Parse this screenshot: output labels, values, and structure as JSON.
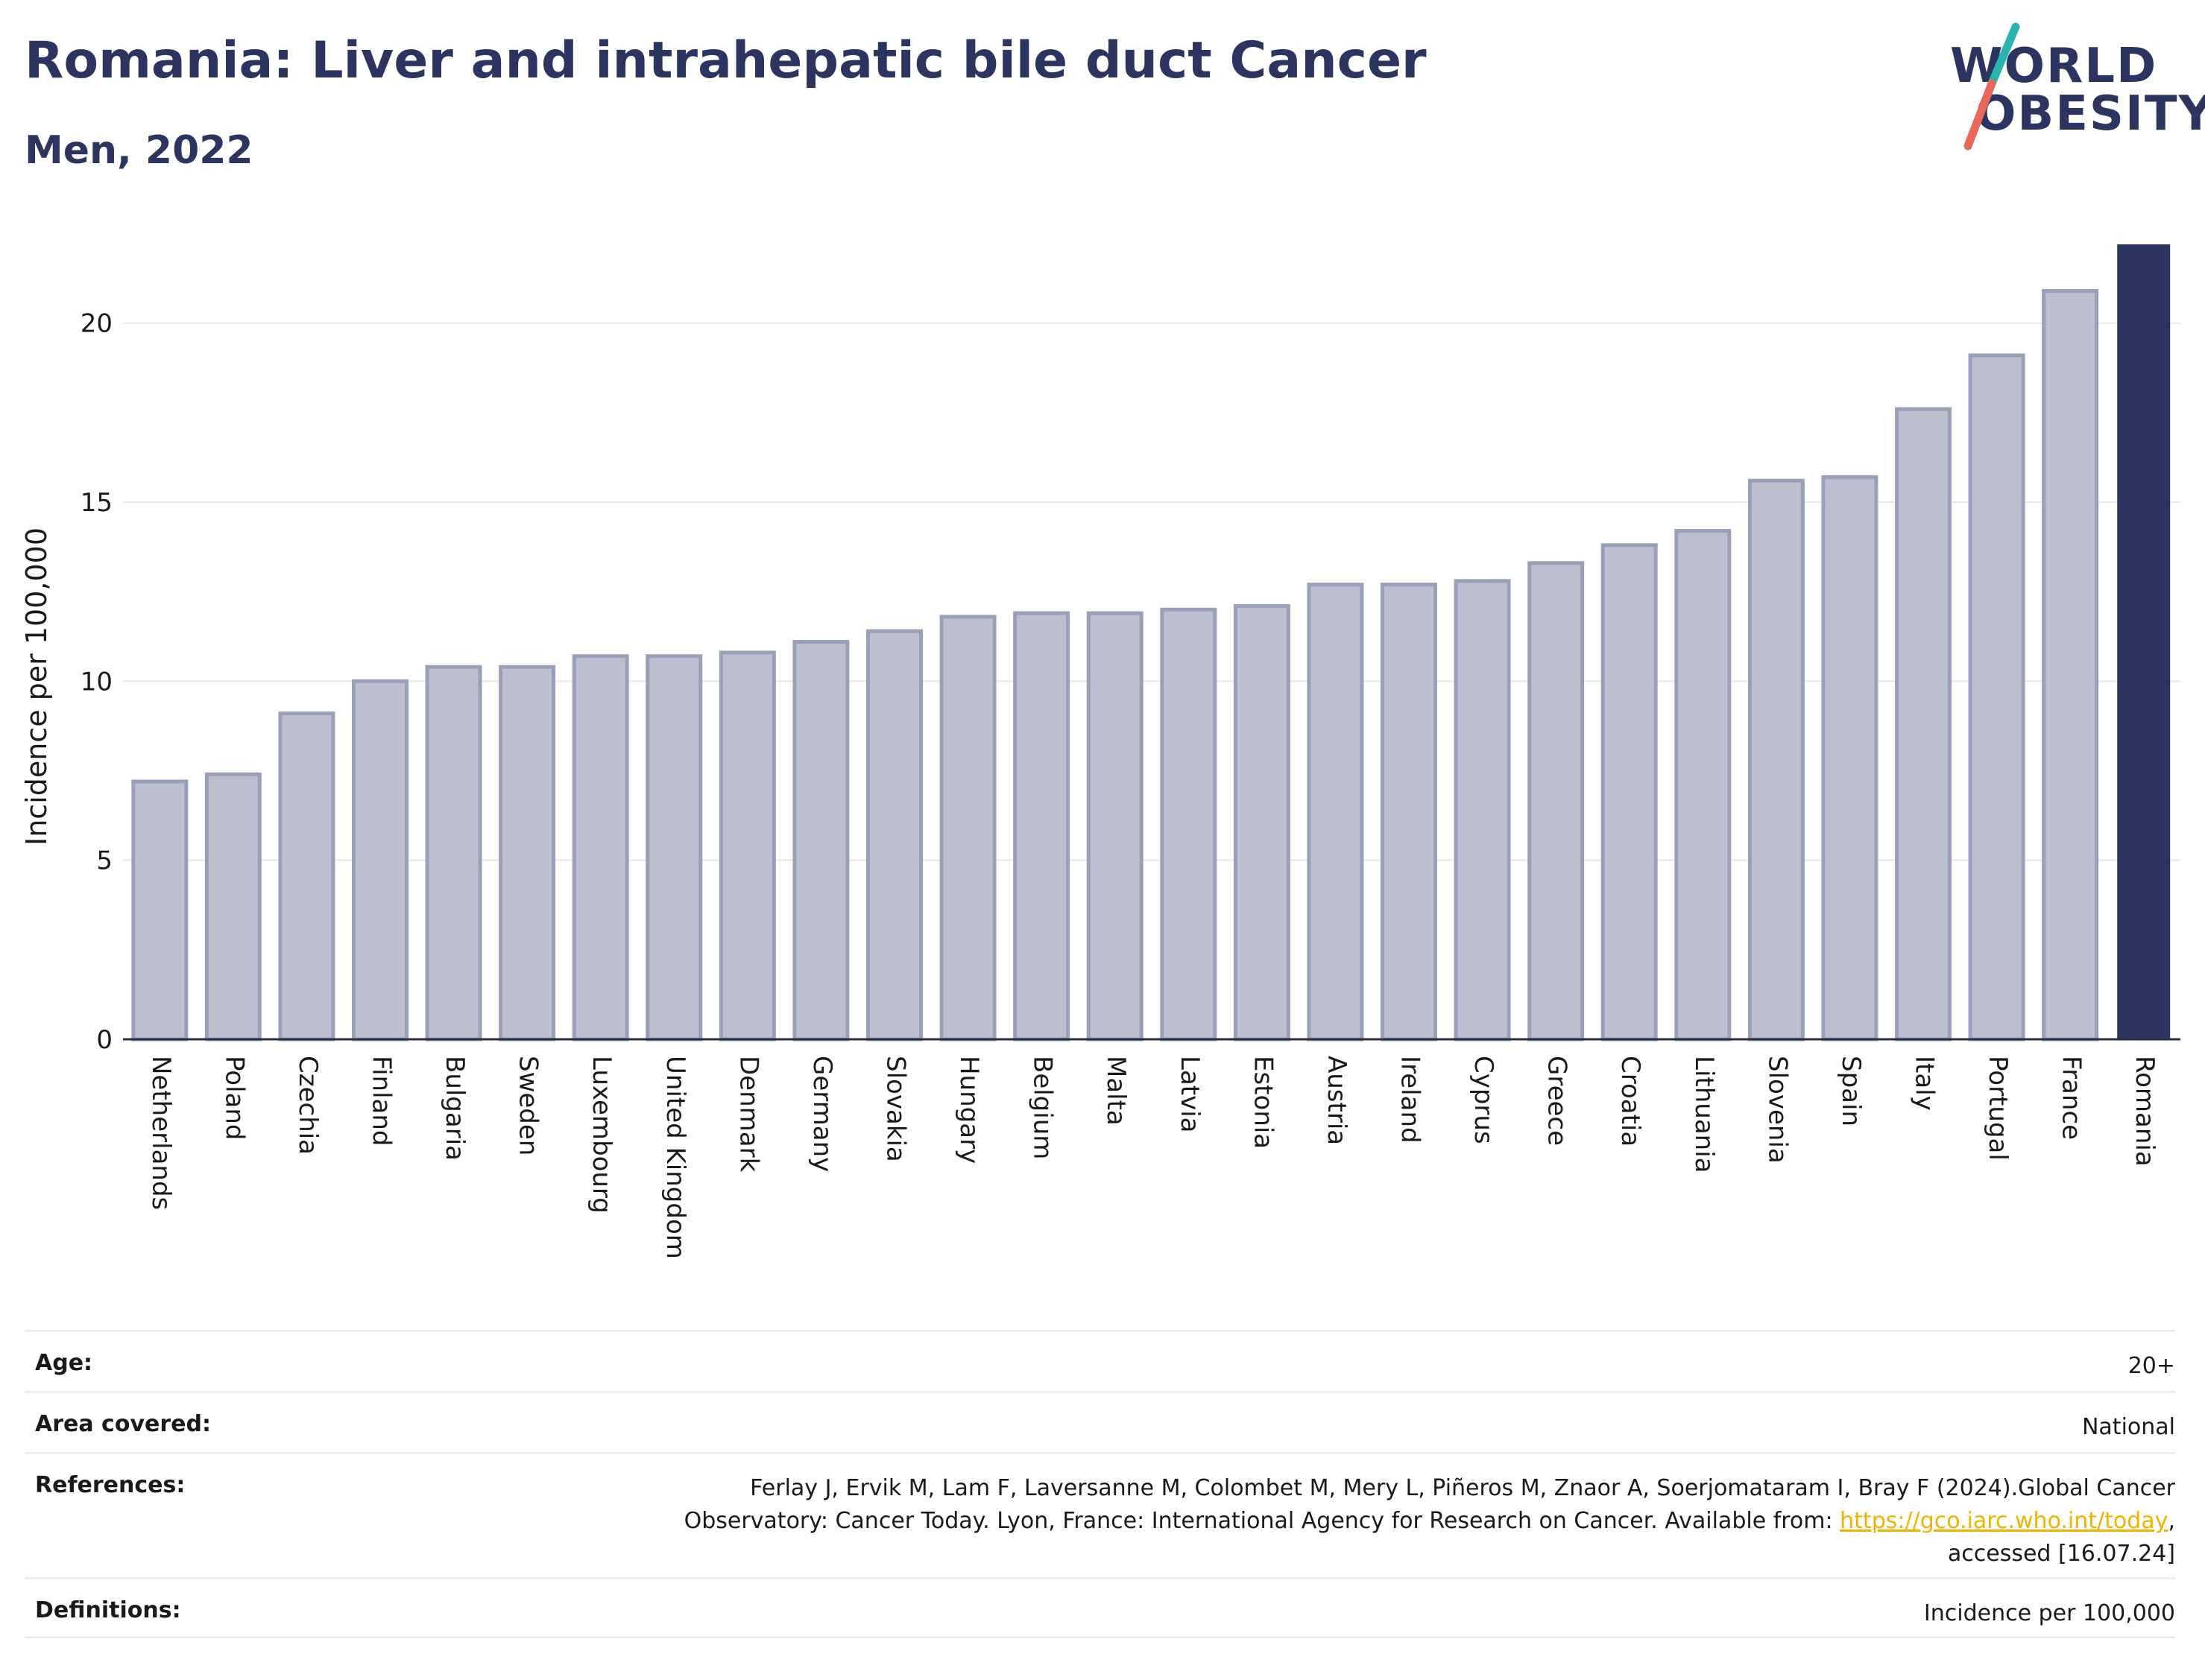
{
  "header": {
    "title": "Romania: Liver and intrahepatic bile duct Cancer",
    "subtitle": "Men, 2022"
  },
  "logo": {
    "line1": "WORLD",
    "line2": "OBESITY",
    "colors": {
      "text": "#2c3560",
      "slash_top": "#2bb3b1",
      "slash_bottom": "#e8695a"
    }
  },
  "chart_data": {
    "type": "bar",
    "title": "Romania: Liver and intrahepatic bile duct Cancer",
    "subtitle": "Men, 2022",
    "xlabel": "",
    "ylabel": "Incidence per 100,000",
    "ylim": [
      0,
      22.2
    ],
    "yticks": [
      0,
      5,
      10,
      15,
      20
    ],
    "grid": true,
    "categories": [
      "Netherlands",
      "Poland",
      "Czechia",
      "Finland",
      "Bulgaria",
      "Sweden",
      "Luxembourg",
      "United Kingdom",
      "Denmark",
      "Germany",
      "Slovakia",
      "Hungary",
      "Belgium",
      "Malta",
      "Latvia",
      "Estonia",
      "Austria",
      "Ireland",
      "Cyprus",
      "Greece",
      "Croatia",
      "Lithuania",
      "Slovenia",
      "Spain",
      "Italy",
      "Portugal",
      "France",
      "Romania"
    ],
    "values": [
      7.2,
      7.4,
      9.1,
      10.0,
      10.4,
      10.4,
      10.7,
      10.7,
      10.8,
      11.1,
      11.4,
      11.8,
      11.9,
      11.9,
      12.0,
      12.1,
      12.7,
      12.7,
      12.8,
      13.3,
      13.8,
      14.2,
      15.6,
      15.7,
      17.6,
      19.1,
      20.9,
      22.2
    ],
    "highlight": "Romania",
    "colors": {
      "bar": "#bcc0ce",
      "bar_edge": "#9aa0b8",
      "highlight": "#2c3560",
      "grid": "#e6e8ee",
      "axis": "#2a2f45"
    }
  },
  "info": {
    "rows": [
      {
        "label": "Age:",
        "value": "20+"
      },
      {
        "label": "Area covered:",
        "value": "National"
      },
      {
        "label": "References:",
        "value_line1": "Ferlay J, Ervik M, Lam F, Laversanne M, Colombet M, Mery L, Piñeros M, Znaor A, Soerjomataram I, Bray F (2024).Global Cancer",
        "value_line2_pre": "Observatory: Cancer Today. Lyon, France: International Agency for Research on Cancer. Available from: ",
        "link": "https://gco.iarc.who.int/today",
        "value_line2_post": ",",
        "value_line3": "accessed [16.07.24]"
      },
      {
        "label": "Definitions:",
        "value": "Incidence per 100,000"
      }
    ]
  }
}
